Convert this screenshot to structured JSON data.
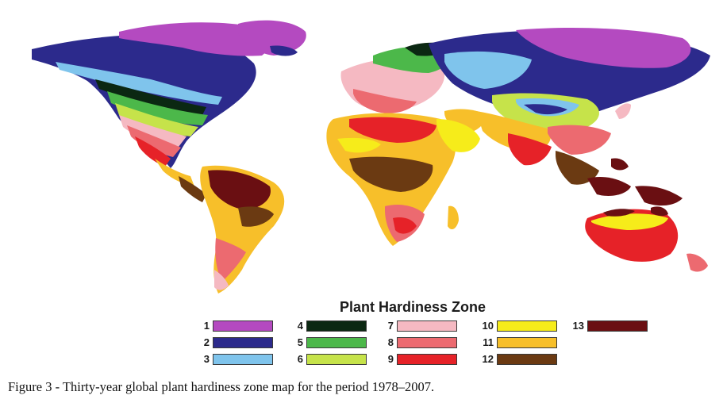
{
  "map": {
    "legend_title": "Plant Hardiness Zone",
    "zones": [
      {
        "zone": "1",
        "color": "#b44ac0"
      },
      {
        "zone": "2",
        "color": "#2c2a8c"
      },
      {
        "zone": "3",
        "color": "#7fc4ec"
      },
      {
        "zone": "4",
        "color": "#0b2812"
      },
      {
        "zone": "5",
        "color": "#4cb84a"
      },
      {
        "zone": "6",
        "color": "#c6e34a"
      },
      {
        "zone": "7",
        "color": "#f5b9c2"
      },
      {
        "zone": "8",
        "color": "#ec6a70"
      },
      {
        "zone": "9",
        "color": "#e62228"
      },
      {
        "zone": "10",
        "color": "#f6ec1a"
      },
      {
        "zone": "11",
        "color": "#f7bf2a"
      },
      {
        "zone": "12",
        "color": "#6b3a12"
      },
      {
        "zone": "13",
        "color": "#6a0f12"
      }
    ]
  },
  "caption": "Figure 3 - Thirty-year global plant hardiness zone map for the period 1978–2007."
}
